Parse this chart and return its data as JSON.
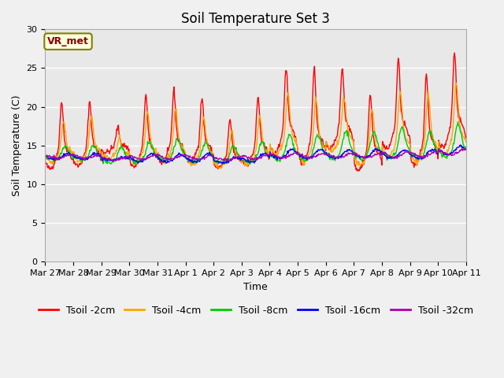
{
  "title": "Soil Temperature Set 3",
  "xlabel": "Time",
  "ylabel": "Soil Temperature (C)",
  "annotation": "VR_met",
  "ylim": [
    0,
    30
  ],
  "yticks": [
    0,
    5,
    10,
    15,
    20,
    25,
    30
  ],
  "series_colors": {
    "Tsoil -2cm": "#ff0000",
    "Tsoil -4cm": "#ffa500",
    "Tsoil -8cm": "#00cc00",
    "Tsoil -16cm": "#0000ff",
    "Tsoil -32cm": "#aa00aa"
  },
  "series_labels": [
    "Tsoil -2cm",
    "Tsoil -4cm",
    "Tsoil -8cm",
    "Tsoil -16cm",
    "Tsoil -32cm"
  ],
  "xtick_labels": [
    "Mar 27",
    "Mar 28",
    "Mar 29",
    "Mar 30",
    "Mar 31",
    "Apr 1",
    "Apr 2",
    "Apr 3",
    "Apr 4",
    "Apr 5",
    "Apr 6",
    "Apr 7",
    "Apr 8",
    "Apr 9",
    "Apr 10",
    "Apr 11"
  ],
  "plot_bg_color": "#e8e8e8",
  "fig_bg_color": "#f0f0f0",
  "title_fontsize": 12,
  "axis_fontsize": 9,
  "tick_fontsize": 8,
  "legend_fontsize": 9,
  "linewidth": 1.0
}
